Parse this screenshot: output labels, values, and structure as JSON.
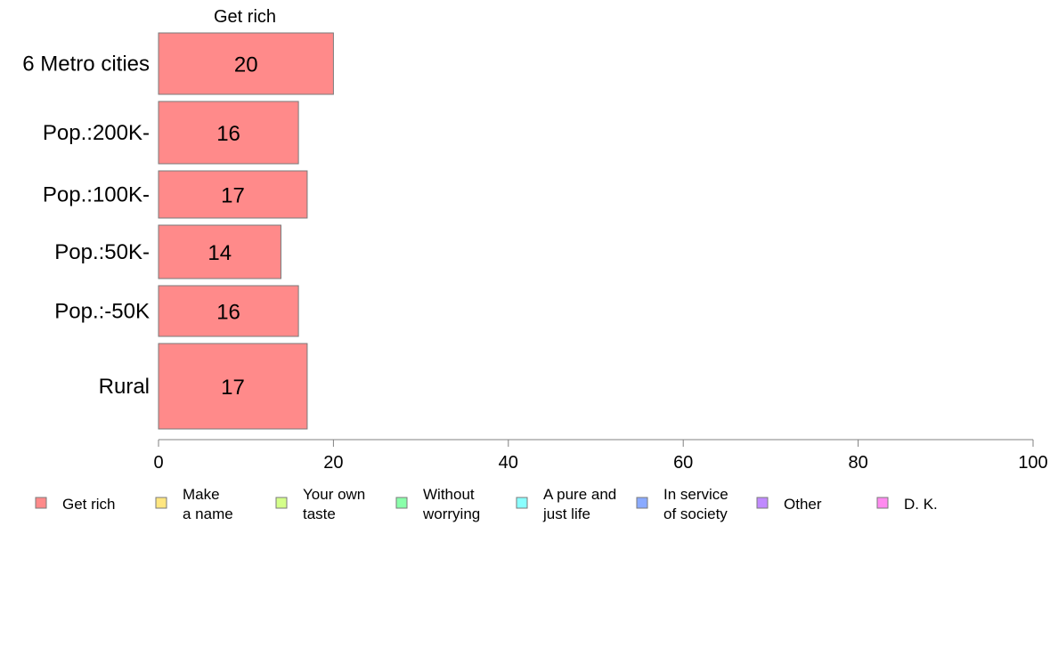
{
  "chart_data": {
    "type": "bar",
    "orientation": "horizontal",
    "panel_title": "Get rich",
    "categories": [
      "6 Metro cities",
      "Pop.:200K-",
      "Pop.:100K-",
      "Pop.:50K-",
      "Pop.:-50K",
      "Rural"
    ],
    "series": [
      {
        "name": "Get rich",
        "values": [
          20,
          16,
          17,
          14,
          16,
          17
        ]
      }
    ],
    "xlim": [
      0,
      100
    ],
    "xticks": [
      0,
      20,
      40,
      60,
      80,
      100
    ],
    "grid": false,
    "legend_position": "bottom",
    "legend": [
      {
        "lines": [
          "Get rich"
        ],
        "color": "#ff8a8a"
      },
      {
        "lines": [
          "Make",
          "a name"
        ],
        "color": "#ffe680"
      },
      {
        "lines": [
          "Your own",
          "taste"
        ],
        "color": "#d4ff8a"
      },
      {
        "lines": [
          "Without",
          "worrying"
        ],
        "color": "#8affaa"
      },
      {
        "lines": [
          "A pure and",
          "just life"
        ],
        "color": "#8affff"
      },
      {
        "lines": [
          "In service",
          "of society"
        ],
        "color": "#8aaaff"
      },
      {
        "lines": [
          "Other"
        ],
        "color": "#c08aff"
      },
      {
        "lines": [
          "D. K."
        ],
        "color": "#ff8aef"
      }
    ]
  }
}
